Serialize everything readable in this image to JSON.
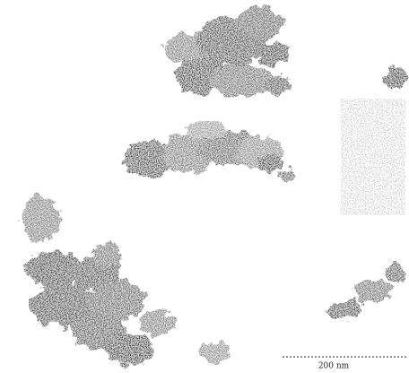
{
  "scale_bar": {
    "label": "200 nm"
  }
}
